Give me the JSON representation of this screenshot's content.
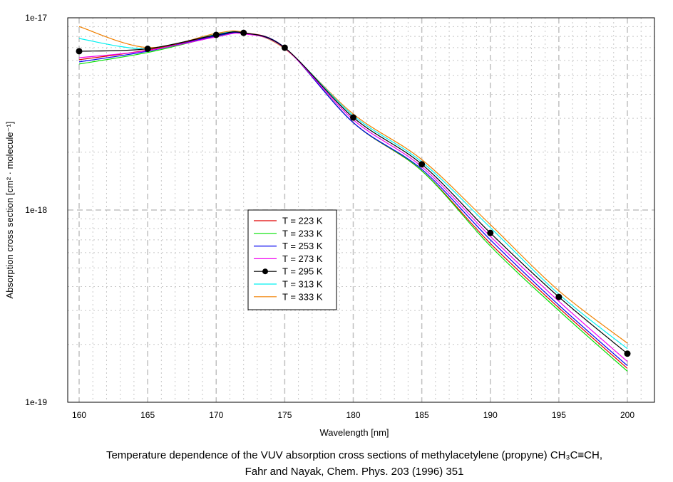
{
  "chart_data": {
    "type": "line",
    "xlabel": "Wavelength [nm]",
    "ylabel": "Absorption cross section [cm² · molecule⁻¹]",
    "xlim": [
      157.2,
      202
    ],
    "ylim": [
      1e-19,
      1e-17
    ],
    "yscale": "log",
    "grid": true,
    "legend_placement": "center",
    "x_ticks": [
      "160",
      "165",
      "170",
      "175",
      "180",
      "185",
      "190",
      "195",
      "200"
    ],
    "y_ticks": [
      "1e-17",
      "1e-18",
      "1e-19"
    ],
    "x": [
      160,
      165,
      170,
      172,
      175,
      180,
      185,
      190,
      195,
      200
    ],
    "series": [
      {
        "name": "T = 223 K",
        "color": "#e00000",
        "values": [
          6.05e-18,
          6.8e-18,
          8.1e-18,
          8.35e-18,
          7e-18,
          2.85e-18,
          1.6e-18,
          6.7e-19,
          3.1e-19,
          1.5e-19
        ]
      },
      {
        "name": "T = 233 K",
        "color": "#00e000",
        "values": [
          5.75e-18,
          6.6e-18,
          8e-18,
          8.3e-18,
          7e-18,
          2.85e-18,
          1.6e-18,
          6.5e-19,
          3e-19,
          1.45e-19
        ]
      },
      {
        "name": "T = 253 K",
        "color": "#0000f0",
        "values": [
          5.9e-18,
          6.7e-18,
          8.05e-18,
          8.3e-18,
          7e-18,
          2.85e-18,
          1.63e-18,
          7e-19,
          3.2e-19,
          1.55e-19
        ]
      },
      {
        "name": "T = 273 K",
        "color": "#f000f0",
        "values": [
          6.2e-18,
          6.75e-18,
          7.95e-18,
          8.25e-18,
          6.95e-18,
          2.95e-18,
          1.68e-18,
          7.3e-19,
          3.35e-19,
          1.63e-19
        ]
      },
      {
        "name": "T = 295 K",
        "color": "#000000",
        "marker": true,
        "values": [
          6.7e-18,
          6.9e-18,
          8.15e-18,
          8.35e-18,
          6.99e-18,
          3.03e-18,
          1.73e-18,
          7.6e-19,
          3.53e-19,
          1.79e-19
        ]
      },
      {
        "name": "T = 313 K",
        "color": "#00f0f0",
        "values": [
          7.8e-18,
          6.9e-18,
          8.2e-18,
          8.35e-18,
          6.95e-18,
          3.1e-18,
          1.78e-18,
          8.1e-19,
          3.65e-19,
          1.9e-19
        ]
      },
      {
        "name": "T = 333 K",
        "color": "#f08000",
        "values": [
          9e-18,
          7e-18,
          8.3e-18,
          8.4e-18,
          6.9e-18,
          3.16e-18,
          1.83e-18,
          8.4e-19,
          3.8e-19,
          2.03e-19
        ]
      }
    ]
  },
  "caption": {
    "line1": "Temperature dependence of the VUV absorption cross sections of methylacetylene (propyne) CH₃C≡CH,",
    "line2": "Fahr and Nayak, Chem. Phys. 203 (1996) 351"
  }
}
